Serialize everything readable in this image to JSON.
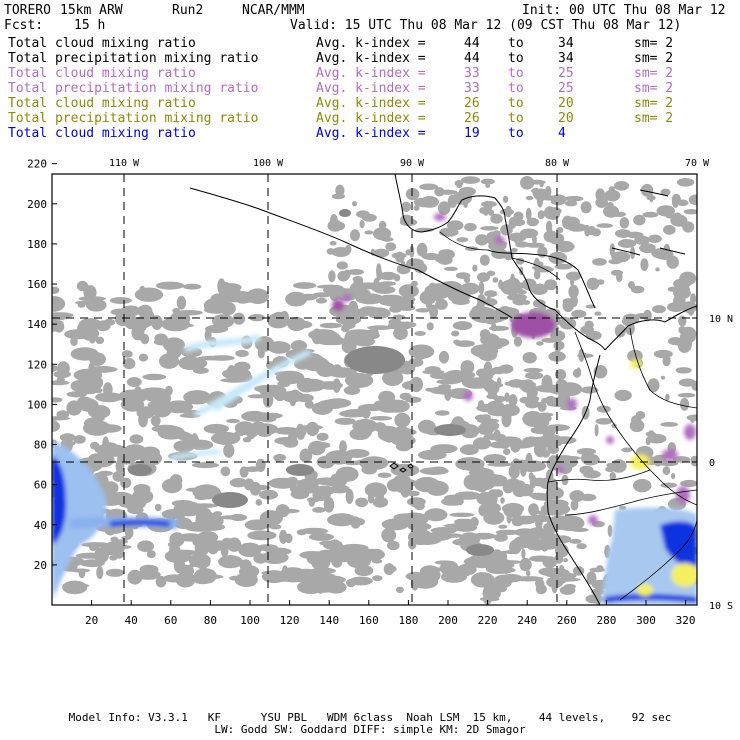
{
  "header": {
    "model": "TORERO",
    "resolution": "15km ARW",
    "run": "Run2",
    "org": "NCAR/MMM",
    "init": "Init: 00 UTC Thu 08 Mar 12",
    "fcst_label": "Fcst:",
    "fcst_value": "15 h",
    "valid": "Valid: 15 UTC Thu 08 Mar 12 (09 CST Thu 08 Mar 12)"
  },
  "legend": [
    {
      "field": "Total cloud mixing ratio",
      "avg": "Avg. k-index =",
      "from": "44",
      "to_word": "to",
      "to": "34",
      "sm": "sm= 2",
      "color": "#000000"
    },
    {
      "field": "Total precipitation mixing ratio",
      "avg": "Avg. k-index =",
      "from": "44",
      "to_word": "to",
      "to": "34",
      "sm": "sm= 2",
      "color": "#000000"
    },
    {
      "field": "Total cloud mixing ratio",
      "avg": "Avg. k-index =",
      "from": "33",
      "to_word": "to",
      "to": "25",
      "sm": "sm= 2",
      "color": "#b070c0"
    },
    {
      "field": "Total precipitation mixing ratio",
      "avg": "Avg. k-index =",
      "from": "33",
      "to_word": "to",
      "to": "25",
      "sm": "sm= 2",
      "color": "#b070c0"
    },
    {
      "field": "Total cloud mixing ratio",
      "avg": "Avg. k-index =",
      "from": "26",
      "to_word": "to",
      "to": "20",
      "sm": "sm= 2",
      "color": "#8c8a10"
    },
    {
      "field": "Total precipitation mixing ratio",
      "avg": "Avg. k-index =",
      "from": "26",
      "to_word": "to",
      "to": "20",
      "sm": "sm= 2",
      "color": "#8c8a10"
    },
    {
      "field": "Total cloud mixing ratio",
      "avg": "Avg. k-index =",
      "from": "19",
      "to_word": "to",
      "to": "4",
      "sm": "",
      "color": "#0000e0"
    }
  ],
  "map": {
    "lon_labels": [
      "110 W",
      "100 W",
      "90 W",
      "80 W",
      "70 W"
    ],
    "lat_labels": [
      "10 N",
      "0",
      "10 S"
    ],
    "y_ticks": [
      "20",
      "40",
      "60",
      "80",
      "100",
      "120",
      "140",
      "160",
      "180",
      "200",
      "220"
    ],
    "x_ticks": [
      "20",
      "40",
      "60",
      "80",
      "100",
      "120",
      "140",
      "160",
      "180",
      "200",
      "220",
      "240",
      "260",
      "280",
      "300",
      "320"
    ],
    "colors": {
      "cloud_gray": "#a8a8a8",
      "cloud_dark": "#888888",
      "purple": "#9e4fa6",
      "yellow": "#f4f060",
      "blue": "#1030e0",
      "light_blue": "#c8e8f8"
    }
  },
  "footer": {
    "line1": "Model Info: V3.3.1   KF      YSU PBL   WDM 6class  Noah LSM  15 km,    44 levels,    92 sec",
    "line2": "LW: Godd SW: Goddard DIFF: simple KM: 2D Smagor"
  }
}
